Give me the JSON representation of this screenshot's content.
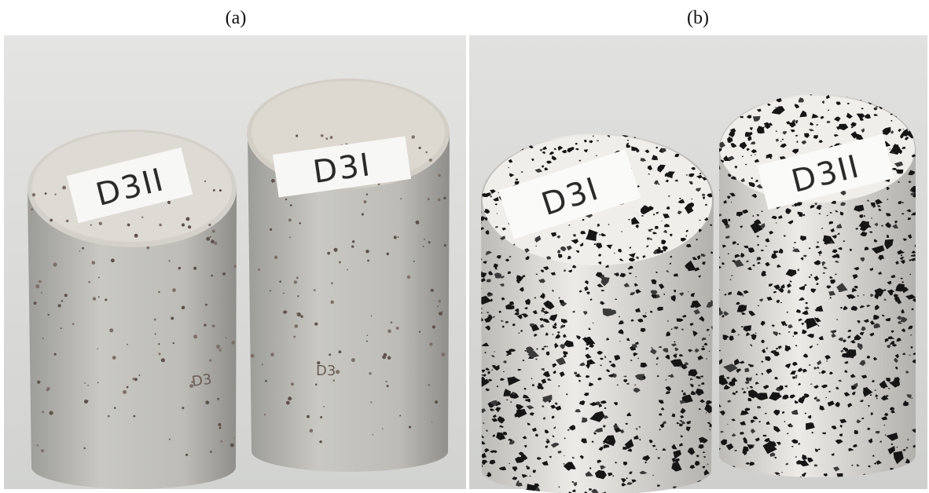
{
  "panels": [
    {
      "caption": "(a)",
      "specimens": [
        {
          "top": "D3II",
          "side": "D3"
        },
        {
          "top": "D3I",
          "side": "D3"
        }
      ]
    },
    {
      "caption": "(b)",
      "specimens": [
        {
          "top": "D3I"
        },
        {
          "top": "D3II"
        }
      ]
    }
  ]
}
